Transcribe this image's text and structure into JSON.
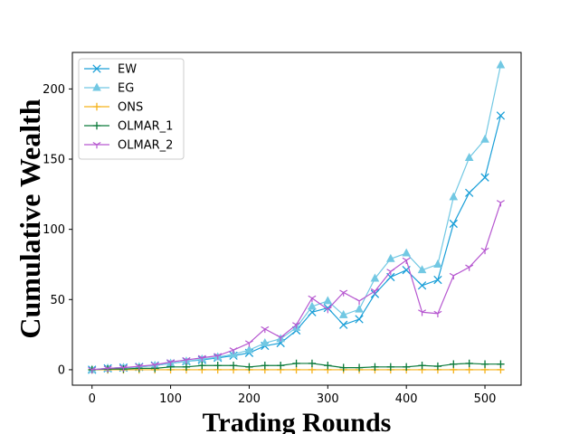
{
  "chart_data": {
    "type": "line",
    "xlabel": "Trading Rounds",
    "ylabel": "Cumulative Wealth",
    "xlim": [
      -25,
      546
    ],
    "ylim": [
      -11,
      226
    ],
    "x_ticks": [
      0,
      100,
      200,
      300,
      400,
      500
    ],
    "y_ticks": [
      0,
      50,
      100,
      150,
      200
    ],
    "x_tick_labels": [
      "0",
      "100",
      "200",
      "300",
      "400",
      "500"
    ],
    "y_tick_labels": [
      "0",
      "50",
      "100",
      "150",
      "200"
    ],
    "grid": false,
    "legend_position": "top-left",
    "x": [
      0,
      20,
      40,
      60,
      80,
      100,
      120,
      140,
      160,
      180,
      200,
      220,
      240,
      260,
      280,
      300,
      320,
      340,
      360,
      380,
      400,
      420,
      440,
      460,
      480,
      500,
      520
    ],
    "series": [
      {
        "name": "EW",
        "color": "#1a9fd8",
        "marker": "x",
        "values": [
          0,
          1,
          1.5,
          2,
          3,
          4.5,
          6,
          7,
          8.5,
          10,
          12,
          17,
          19,
          28,
          41,
          44,
          32,
          36,
          54,
          66,
          71,
          60,
          64,
          104,
          126,
          137,
          181
        ]
      },
      {
        "name": "EG",
        "color": "#72c8e3",
        "marker": "triangle",
        "values": [
          0,
          1,
          1.5,
          2,
          3,
          4.5,
          6,
          7.5,
          9,
          11,
          14,
          19,
          22,
          30,
          45,
          49,
          39,
          43,
          65,
          79,
          83,
          71,
          75,
          123,
          151,
          164,
          217
        ]
      },
      {
        "name": "ONS",
        "color": "#f5b21b",
        "marker": "plus",
        "values": [
          0,
          0,
          0,
          0,
          0,
          0,
          0,
          0,
          0,
          0,
          0,
          0,
          0,
          0,
          0,
          0,
          0,
          0,
          0,
          0,
          0,
          0,
          0,
          0,
          0,
          0,
          0
        ]
      },
      {
        "name": "OLMAR_1",
        "color": "#0a7a3a",
        "marker": "plus",
        "values": [
          0,
          0.5,
          0.5,
          1,
          1,
          2,
          2,
          3,
          3,
          3,
          2,
          3,
          3,
          4.5,
          4.5,
          3,
          1.5,
          1.5,
          2,
          2,
          2,
          3,
          2.5,
          4,
          4.5,
          4,
          4
        ]
      },
      {
        "name": "OLMAR_2",
        "color": "#b657d0",
        "marker": "tri_down",
        "values": [
          0,
          1,
          1.5,
          2.5,
          3.5,
          5.5,
          7,
          8.5,
          10,
          14,
          19,
          29,
          23,
          32,
          51,
          43,
          55,
          49,
          56,
          70,
          78,
          41,
          40,
          67,
          73,
          85,
          119
        ]
      }
    ]
  }
}
